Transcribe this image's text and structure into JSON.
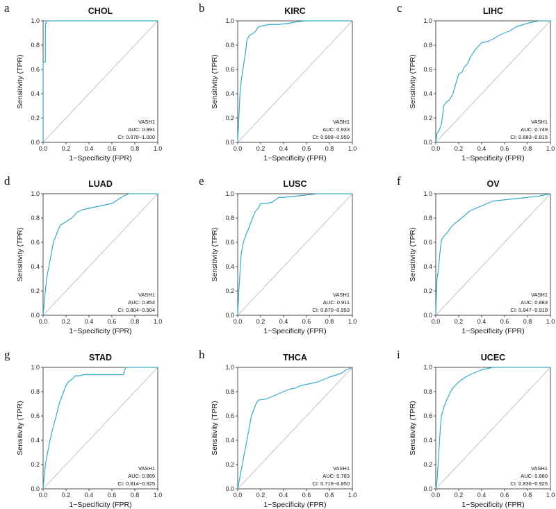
{
  "chart_data": [
    {
      "type": "line",
      "letter": "a",
      "title": "CHOL",
      "xlabel": "1−Specificity (FPR)",
      "ylabel": "Sensitivity (TPR)",
      "xlim": [
        0,
        1
      ],
      "ylim": [
        0,
        1
      ],
      "ticks": [
        "0.0",
        "0.2",
        "0.4",
        "0.6",
        "0.8",
        "1.0"
      ],
      "grid": false,
      "legend_position": "bottom-right",
      "legend": {
        "gene": "VASH1",
        "auc": "AUC: 0.991",
        "ci": "CI: 0.970−1.000"
      },
      "series": [
        {
          "name": "VASH1",
          "color": "#36a9c6",
          "x": [
            0,
            0,
            0.02,
            0.02,
            0.03,
            0.03,
            1
          ],
          "y": [
            0,
            0.66,
            0.66,
            0.98,
            0.98,
            1,
            1
          ]
        }
      ]
    },
    {
      "type": "line",
      "letter": "b",
      "title": "KIRC",
      "xlabel": "1−Specificity (FPR)",
      "ylabel": "Sensitivity (TPR)",
      "xlim": [
        0,
        1
      ],
      "ylim": [
        0,
        1
      ],
      "ticks": [
        "0.0",
        "0.2",
        "0.4",
        "0.6",
        "0.8",
        "1.0"
      ],
      "grid": false,
      "legend_position": "bottom-right",
      "legend": {
        "gene": "VASH1",
        "auc": "AUC: 0.933",
        "ci": "CI: 0.908−0.959"
      },
      "series": [
        {
          "name": "VASH1",
          "color": "#36a9c6",
          "x": [
            0,
            0.01,
            0.02,
            0.03,
            0.05,
            0.07,
            0.08,
            0.09,
            0.1,
            0.12,
            0.14,
            0.16,
            0.18,
            0.22,
            0.28,
            0.35,
            0.45,
            0.5,
            0.6,
            0.8,
            1
          ],
          "y": [
            0,
            0.2,
            0.4,
            0.5,
            0.63,
            0.75,
            0.84,
            0.86,
            0.88,
            0.89,
            0.9,
            0.92,
            0.95,
            0.96,
            0.97,
            0.97,
            0.98,
            0.99,
            1,
            1,
            1
          ]
        }
      ]
    },
    {
      "type": "line",
      "letter": "c",
      "title": "LIHC",
      "xlabel": "1−Specificity (FPR)",
      "ylabel": "Sensitivity (TPR)",
      "xlim": [
        0,
        1
      ],
      "ylim": [
        0,
        1
      ],
      "ticks": [
        "0.0",
        "0.2",
        "0.4",
        "0.6",
        "0.8",
        "1.0"
      ],
      "grid": false,
      "legend_position": "bottom-right",
      "legend": {
        "gene": "VASH1",
        "auc": "AUC: 0.749",
        "ci": "CI: 0.683−0.815"
      },
      "series": [
        {
          "name": "VASH1",
          "color": "#36a9c6",
          "x": [
            0,
            0.01,
            0.03,
            0.05,
            0.07,
            0.09,
            0.12,
            0.15,
            0.18,
            0.2,
            0.23,
            0.25,
            0.28,
            0.3,
            0.33,
            0.35,
            0.38,
            0.4,
            0.45,
            0.5,
            0.55,
            0.6,
            0.65,
            0.7,
            0.8,
            0.9,
            1
          ],
          "y": [
            0,
            0.07,
            0.1,
            0.15,
            0.3,
            0.33,
            0.35,
            0.4,
            0.5,
            0.56,
            0.58,
            0.62,
            0.65,
            0.7,
            0.74,
            0.77,
            0.8,
            0.82,
            0.83,
            0.85,
            0.88,
            0.9,
            0.92,
            0.95,
            0.98,
            1,
            1
          ]
        }
      ]
    },
    {
      "type": "line",
      "letter": "d",
      "title": "LUAD",
      "xlabel": "1−Specificity (FPR)",
      "ylabel": "Sensitivity (TPR)",
      "xlim": [
        0,
        1
      ],
      "ylim": [
        0,
        1
      ],
      "ticks": [
        "0.0",
        "0.2",
        "0.4",
        "0.6",
        "0.8",
        "1.0"
      ],
      "grid": false,
      "legend_position": "bottom-right",
      "legend": {
        "gene": "VASH1",
        "auc": "AUC: 0.854",
        "ci": "CI: 0.804−0.904"
      },
      "series": [
        {
          "name": "VASH1",
          "color": "#36a9c6",
          "x": [
            0,
            0.01,
            0.02,
            0.03,
            0.05,
            0.07,
            0.09,
            0.11,
            0.13,
            0.15,
            0.2,
            0.25,
            0.3,
            0.35,
            0.4,
            0.45,
            0.5,
            0.55,
            0.6,
            0.65,
            0.7,
            0.75,
            1
          ],
          "y": [
            0,
            0.1,
            0.2,
            0.3,
            0.4,
            0.5,
            0.6,
            0.65,
            0.7,
            0.74,
            0.77,
            0.8,
            0.85,
            0.87,
            0.88,
            0.89,
            0.9,
            0.91,
            0.92,
            0.95,
            0.98,
            1,
            1
          ]
        }
      ]
    },
    {
      "type": "line",
      "letter": "e",
      "title": "LUSC",
      "xlabel": "1−Specificity (FPR)",
      "ylabel": "Sensitivity (TPR)",
      "xlim": [
        0,
        1
      ],
      "ylim": [
        0,
        1
      ],
      "ticks": [
        "0.0",
        "0.2",
        "0.4",
        "0.6",
        "0.8",
        "1.0"
      ],
      "grid": false,
      "legend_position": "bottom-right",
      "legend": {
        "gene": "VASH1",
        "auc": "AUC: 0.911",
        "ci": "CI: 0.870−0.953"
      },
      "series": [
        {
          "name": "VASH1",
          "color": "#36a9c6",
          "x": [
            0,
            0.01,
            0.02,
            0.03,
            0.05,
            0.07,
            0.09,
            0.11,
            0.13,
            0.15,
            0.18,
            0.2,
            0.25,
            0.3,
            0.33,
            0.36,
            0.4,
            0.5,
            0.7,
            1
          ],
          "y": [
            0,
            0.2,
            0.35,
            0.5,
            0.6,
            0.66,
            0.7,
            0.75,
            0.8,
            0.85,
            0.88,
            0.92,
            0.92,
            0.93,
            0.95,
            0.97,
            0.97,
            0.98,
            1,
            1
          ]
        }
      ]
    },
    {
      "type": "line",
      "letter": "f",
      "title": "OV",
      "xlabel": "1−Specificity (FPR)",
      "ylabel": "Sensitivity (TPR)",
      "xlim": [
        0,
        1
      ],
      "ylim": [
        0,
        1
      ],
      "ticks": [
        "0.0",
        "0.2",
        "0.4",
        "0.6",
        "0.8",
        "1.0"
      ],
      "grid": false,
      "legend_position": "bottom-right",
      "legend": {
        "gene": "VASH1",
        "auc": "AUC: 0.883",
        "ci": "CI: 0.847−0.918"
      },
      "series": [
        {
          "name": "VASH1",
          "color": "#36a9c6",
          "x": [
            0,
            0.01,
            0.02,
            0.03,
            0.04,
            0.05,
            0.07,
            0.1,
            0.13,
            0.16,
            0.2,
            0.25,
            0.3,
            0.35,
            0.4,
            0.45,
            0.5,
            0.6,
            0.7,
            0.8,
            0.9,
            1
          ],
          "y": [
            0,
            0.3,
            0.35,
            0.45,
            0.55,
            0.62,
            0.65,
            0.68,
            0.72,
            0.75,
            0.78,
            0.82,
            0.86,
            0.88,
            0.9,
            0.92,
            0.94,
            0.95,
            0.96,
            0.97,
            0.98,
            1
          ]
        }
      ]
    },
    {
      "type": "line",
      "letter": "g",
      "title": "STAD",
      "xlabel": "1−Specificity (FPR)",
      "ylabel": "Sensitivity (TPR)",
      "xlim": [
        0,
        1
      ],
      "ylim": [
        0,
        1
      ],
      "ticks": [
        "0.0",
        "0.2",
        "0.4",
        "0.6",
        "0.8",
        "1.0"
      ],
      "grid": false,
      "legend_position": "bottom-right",
      "legend": {
        "gene": "VASH1",
        "auc": "AUC: 0.869",
        "ci": "CI: 0.814−0.925"
      },
      "series": [
        {
          "name": "VASH1",
          "color": "#36a9c6",
          "x": [
            0,
            0.01,
            0.02,
            0.04,
            0.06,
            0.08,
            0.1,
            0.12,
            0.14,
            0.16,
            0.18,
            0.2,
            0.22,
            0.25,
            0.28,
            0.32,
            0.35,
            0.5,
            0.7,
            0.72,
            1
          ],
          "y": [
            0,
            0.1,
            0.2,
            0.3,
            0.4,
            0.48,
            0.55,
            0.62,
            0.7,
            0.75,
            0.8,
            0.85,
            0.88,
            0.9,
            0.93,
            0.93,
            0.94,
            0.94,
            0.94,
            1,
            1
          ]
        }
      ]
    },
    {
      "type": "line",
      "letter": "h",
      "title": "THCA",
      "xlabel": "1−Specificity (FPR)",
      "ylabel": "Sensitivity (TPR)",
      "xlim": [
        0,
        1
      ],
      "ylim": [
        0,
        1
      ],
      "ticks": [
        "0.0",
        "0.2",
        "0.4",
        "0.6",
        "0.8",
        "1.0"
      ],
      "grid": false,
      "legend_position": "bottom-right",
      "legend": {
        "gene": "VASH1",
        "auc": "AUC: 0.783",
        "ci": "CI: 0.716−0.850"
      },
      "series": [
        {
          "name": "VASH1",
          "color": "#36a9c6",
          "x": [
            0,
            0.02,
            0.04,
            0.06,
            0.08,
            0.1,
            0.12,
            0.14,
            0.16,
            0.18,
            0.25,
            0.3,
            0.35,
            0.4,
            0.45,
            0.5,
            0.55,
            0.6,
            0.65,
            0.7,
            0.75,
            0.8,
            0.9,
            0.95,
            1
          ],
          "y": [
            0,
            0.1,
            0.2,
            0.3,
            0.4,
            0.5,
            0.6,
            0.65,
            0.7,
            0.73,
            0.74,
            0.76,
            0.78,
            0.8,
            0.82,
            0.83,
            0.85,
            0.86,
            0.87,
            0.88,
            0.9,
            0.92,
            0.95,
            0.98,
            1
          ]
        }
      ]
    },
    {
      "type": "line",
      "letter": "i",
      "title": "UCEC",
      "xlabel": "1−Specificity (FPR)",
      "ylabel": "Sensitivity (TPR)",
      "xlim": [
        0,
        1
      ],
      "ylim": [
        0,
        1
      ],
      "ticks": [
        "0.0",
        "0.2",
        "0.4",
        "0.6",
        "0.8",
        "1.0"
      ],
      "grid": false,
      "legend_position": "bottom-right",
      "legend": {
        "gene": "VASH1",
        "auc": "AUC: 0.880",
        "ci": "CI: 0.836−0.925"
      },
      "series": [
        {
          "name": "VASH1",
          "color": "#36a9c6",
          "x": [
            0,
            0.01,
            0.02,
            0.03,
            0.04,
            0.05,
            0.07,
            0.09,
            0.11,
            0.13,
            0.15,
            0.18,
            0.2,
            0.23,
            0.26,
            0.3,
            0.35,
            0.4,
            0.45,
            0.5,
            1
          ],
          "y": [
            0,
            0.05,
            0.2,
            0.35,
            0.5,
            0.6,
            0.67,
            0.72,
            0.76,
            0.8,
            0.83,
            0.86,
            0.88,
            0.9,
            0.92,
            0.94,
            0.96,
            0.98,
            0.99,
            1,
            1
          ]
        }
      ]
    }
  ]
}
